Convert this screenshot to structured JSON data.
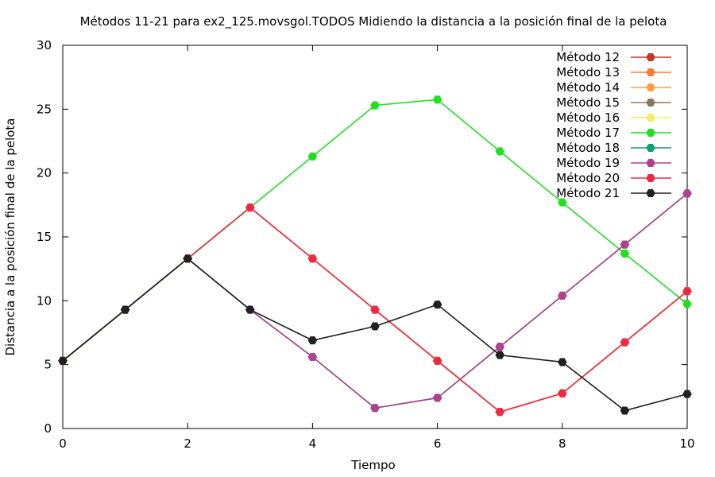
{
  "chart_data": {
    "type": "line",
    "title": "Métodos 11-21 para ex2_125.movsgol.TODOS Midiendo la distancia a la posición final de la pelota",
    "xlabel": "Tiempo",
    "ylabel": "Distancia a la posición final de la pelota",
    "xlim": [
      0,
      10
    ],
    "ylim": [
      0,
      30
    ],
    "xticks": [
      "0",
      "2",
      "4",
      "6",
      "8",
      "10"
    ],
    "yticks": [
      "0",
      "5",
      "10",
      "15",
      "20",
      "25",
      "30"
    ],
    "grid": false,
    "legend_position": "top-right",
    "x": [
      0,
      1,
      2,
      3,
      4,
      5,
      6,
      7,
      8,
      9,
      10
    ],
    "series": [
      {
        "name": "Método 12",
        "color": "#c0392b",
        "values": [
          5.3,
          9.3,
          13.3,
          17.3,
          13.3,
          9.3,
          5.3,
          1.3,
          2.75,
          6.75,
          10.75
        ]
      },
      {
        "name": "Método 13",
        "color": "#ff7a30",
        "values": [
          5.3,
          9.3,
          13.3,
          17.3,
          13.3,
          9.3,
          5.3,
          1.3,
          2.75,
          6.75,
          10.75
        ]
      },
      {
        "name": "Método 14",
        "color": "#ffa040",
        "values": [
          5.3,
          9.3,
          13.3,
          17.3,
          13.3,
          9.3,
          5.3,
          1.3,
          2.75,
          6.75,
          10.75
        ]
      },
      {
        "name": "Método 15",
        "color": "#8a7a5a",
        "values": [
          5.3,
          9.3,
          13.3,
          17.3,
          13.3,
          9.3,
          5.3,
          1.3,
          2.75,
          6.75,
          10.75
        ]
      },
      {
        "name": "Método 16",
        "color": "#f0f060",
        "values": [
          5.3,
          9.3,
          13.3,
          17.3,
          13.3,
          9.3,
          5.3,
          1.3,
          2.75,
          6.75,
          10.75
        ]
      },
      {
        "name": "Método 17",
        "color": "#20e020",
        "values": [
          5.3,
          9.3,
          13.3,
          17.3,
          21.3,
          25.3,
          25.75,
          21.7,
          17.7,
          13.7,
          9.75
        ]
      },
      {
        "name": "Método 18",
        "color": "#10a070",
        "values": [
          5.3,
          9.3,
          13.3,
          9.3,
          5.6,
          1.6,
          2.4,
          6.4,
          10.4,
          14.4,
          18.4
        ]
      },
      {
        "name": "Método 19",
        "color": "#b04090",
        "values": [
          5.3,
          9.3,
          13.3,
          9.3,
          5.6,
          1.6,
          2.4,
          6.4,
          10.4,
          14.4,
          18.4
        ]
      },
      {
        "name": "Método 20",
        "color": "#f02848",
        "values": [
          5.3,
          9.3,
          13.3,
          17.3,
          13.3,
          9.3,
          5.3,
          1.3,
          2.75,
          6.75,
          10.75
        ]
      },
      {
        "name": "Método 21",
        "color": "#202020",
        "values": [
          5.3,
          9.3,
          13.3,
          9.3,
          6.9,
          8.0,
          9.7,
          5.75,
          5.2,
          1.4,
          2.7
        ]
      }
    ]
  }
}
